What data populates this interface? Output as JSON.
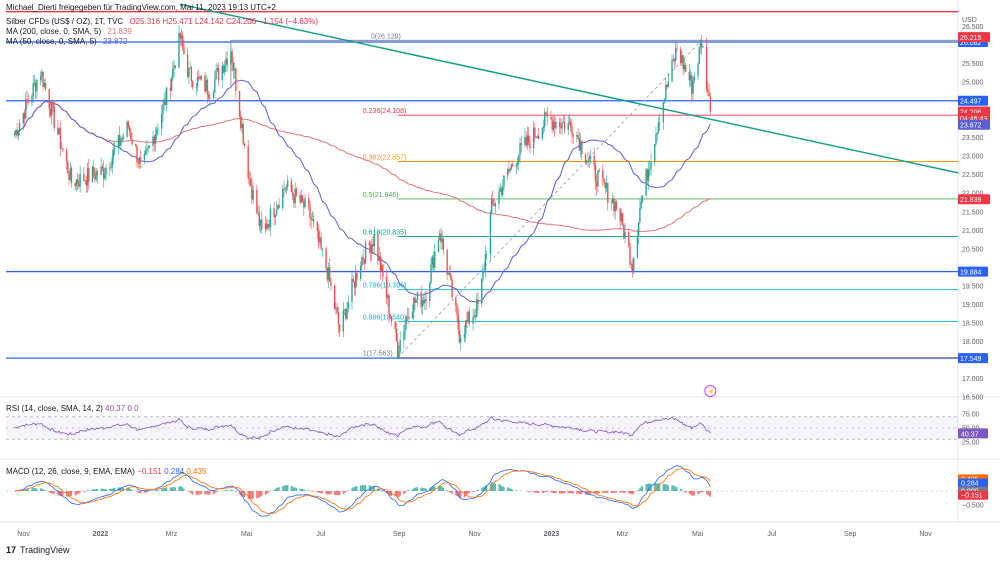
{
  "header": {
    "credit": "Michael_Dierti freigegeben für TradingView.com, Mai 11, 2023 19:13 UTC+2",
    "symbol": "Silber CFDs (US$ / OZ), 1T, TVC",
    "ohlc": "O25.316 H25.471 L24.142 C24.206 −1.154 (−4.63%)",
    "ma200_label": "MA (200, close, 0, SMA, 5)",
    "ma200_value": "21.839",
    "ma50_label": "MA (50, close, 0, SMA, 5)",
    "ma50_value": "23.872",
    "currency": "USD"
  },
  "colors": {
    "up": "#26a69a",
    "down": "#ef5350",
    "ma50": "#5b5fd6",
    "ma200": "#e57373",
    "trendline": "#1b9e8a",
    "hline": "#2962ff",
    "rsi": "#7e57c2",
    "macd": "#2962ff",
    "signal": "#ff6d00"
  },
  "axis_price_ticks": [
    "26.500",
    "25.500",
    "25.000",
    "24.500",
    "23.500",
    "23.000",
    "22.500",
    "22.000",
    "21.500",
    "21.000",
    "20.500",
    "19.500",
    "19.000",
    "18.500",
    "18.000",
    "17.000",
    "16.500"
  ],
  "time_labels": [
    "Nov",
    "2022",
    "Mrz",
    "Mai",
    "Jul",
    "Sep",
    "Nov",
    "2023",
    "Mrz",
    "Mai",
    "Jul",
    "Sep",
    "Nov"
  ],
  "fib_levels": [
    {
      "label": "0(26.129)",
      "value": 26.129,
      "color": "#787b86"
    },
    {
      "label": "0.236(24.108)",
      "value": 24.108,
      "color": "#f23645"
    },
    {
      "label": "0.382(22.857)",
      "value": 22.857,
      "color": "#ff9800"
    },
    {
      "label": "0.5(21.846)",
      "value": 21.846,
      "color": "#4caf50"
    },
    {
      "label": "0.618(20.835)",
      "value": 20.835,
      "color": "#089981"
    },
    {
      "label": "0.786(19.396)",
      "value": 19.396,
      "color": "#00bcd4"
    },
    {
      "label": "0.886(18.540)",
      "value": 18.54,
      "color": "#00bcd4"
    },
    {
      "label": "1(17.563)",
      "value": 17.563,
      "color": "#787b86"
    }
  ],
  "h_lines": [
    {
      "value": 26.9,
      "label": "",
      "color": "#f23645"
    },
    {
      "value": 26.082,
      "label": "26.082",
      "color": "#2962ff"
    },
    {
      "value": 24.497,
      "label": "24.497",
      "color": "#2962ff"
    },
    {
      "value": 19.884,
      "label": "19.884",
      "color": "#2962ff"
    },
    {
      "value": 17.549,
      "label": "17.549",
      "color": "#2962ff"
    }
  ],
  "price_badges": [
    {
      "label": "26.215",
      "value": 26.215,
      "color": "#f23645"
    },
    {
      "label": "24.206",
      "value": 24.206,
      "color": "#f23645"
    },
    {
      "label": "04:46:43",
      "value": 24.03,
      "color": "#f23645"
    },
    {
      "label": "23.872",
      "value": 23.85,
      "color": "#5b5fd6"
    },
    {
      "label": "21.839",
      "value": 21.839,
      "color": "#f23645"
    }
  ],
  "rsi": {
    "label": "RSI (14, close, SMA, 14, 2)",
    "value": "40.37",
    "value_extras": "0 0",
    "ticks": [
      "75.00",
      "50.00",
      "25.00"
    ],
    "badge": "40.37"
  },
  "macd": {
    "label": "MACD (12, 26, close, 9, EMA, EMA)",
    "values": [
      "−0.151",
      "0.284",
      "0.435"
    ],
    "ticks": [
      "0.500",
      "0.000",
      "−0.500"
    ],
    "badges": [
      {
        "label": "0.435",
        "color": "#ff6d00"
      },
      {
        "label": "0.284",
        "color": "#2962ff"
      },
      {
        "label": "0.000",
        "color": "#787b86"
      },
      {
        "label": "−0.151",
        "color": "#f23645"
      }
    ]
  },
  "footer": {
    "brand": "TradingView"
  },
  "chart_data": {
    "type": "line",
    "title": "Silber CFDs (US$ / OZ), 1T, TVC",
    "ylim": [
      16.5,
      27.0
    ],
    "x": [
      "2021-11",
      "2022-01",
      "2022-03",
      "2022-05",
      "2022-07",
      "2022-09",
      "2022-11",
      "2023-01",
      "2023-03",
      "2023-05"
    ],
    "price_path": [
      [
        "2021-10-25",
        23.6
      ],
      [
        "2021-11-15",
        25.3
      ],
      [
        "2021-12-10",
        22.3
      ],
      [
        "2022-01-05",
        22.6
      ],
      [
        "2022-01-25",
        23.8
      ],
      [
        "2022-02-05",
        22.6
      ],
      [
        "2022-02-25",
        24.6
      ],
      [
        "2022-03-08",
        26.2
      ],
      [
        "2022-03-15",
        25.2
      ],
      [
        "2022-04-01",
        24.8
      ],
      [
        "2022-04-18",
        25.9
      ],
      [
        "2022-05-03",
        22.4
      ],
      [
        "2022-05-13",
        20.9
      ],
      [
        "2022-06-01",
        22.2
      ],
      [
        "2022-06-20",
        21.5
      ],
      [
        "2022-07-05",
        19.9
      ],
      [
        "2022-07-15",
        18.3
      ],
      [
        "2022-08-01",
        20.2
      ],
      [
        "2022-08-12",
        20.8
      ],
      [
        "2022-08-31",
        17.8
      ],
      [
        "2022-09-10",
        19.0
      ],
      [
        "2022-09-22",
        19.2
      ],
      [
        "2022-10-04",
        21.0
      ],
      [
        "2022-10-20",
        18.2
      ],
      [
        "2022-11-05",
        19.0
      ],
      [
        "2022-11-15",
        21.6
      ],
      [
        "2022-12-05",
        23.0
      ],
      [
        "2022-12-30",
        24.0
      ],
      [
        "2023-01-20",
        23.8
      ],
      [
        "2023-02-05",
        22.6
      ],
      [
        "2023-02-25",
        21.6
      ],
      [
        "2023-03-09",
        20.1
      ],
      [
        "2023-03-15",
        21.6
      ],
      [
        "2023-03-30",
        24.0
      ],
      [
        "2023-04-14",
        25.9
      ],
      [
        "2023-04-26",
        24.9
      ],
      [
        "2023-05-04",
        26.1
      ],
      [
        "2023-05-11",
        24.2
      ]
    ],
    "series": [
      {
        "name": "MA (200, close, 0, SMA, 5)",
        "last": 21.839
      },
      {
        "name": "MA (50, close, 0, SMA, 5)",
        "last": 23.872
      }
    ],
    "fib_retracement": [
      26.129,
      24.108,
      22.857,
      21.846,
      20.835,
      19.396,
      18.54,
      17.563
    ],
    "rsi_last": 40.37,
    "macd_last": {
      "macd": -0.151,
      "signal": 0.284,
      "histogram": 0.435
    }
  }
}
